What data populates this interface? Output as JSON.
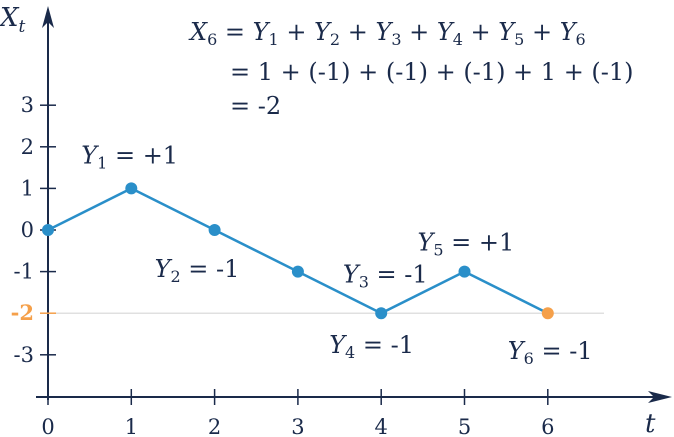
{
  "chart_data": {
    "type": "line",
    "x_axis_label": "t",
    "y_axis_label_base": "X",
    "y_axis_label_sub": "t",
    "x_ticks": [
      "0",
      "1",
      "2",
      "3",
      "4",
      "5",
      "6"
    ],
    "y_ticks": [
      {
        "value": 3,
        "label": "3"
      },
      {
        "value": 2,
        "label": "2"
      },
      {
        "value": 1,
        "label": "1"
      },
      {
        "value": 0,
        "label": "0"
      },
      {
        "value": -1,
        "label": "-1"
      },
      {
        "value": -2,
        "label": "-2",
        "highlight": true
      },
      {
        "value": -3,
        "label": "-3"
      }
    ],
    "xlim": [
      0,
      6
    ],
    "ylim": [
      -3,
      3
    ],
    "x": [
      0,
      1,
      2,
      3,
      4,
      5,
      6
    ],
    "y": [
      0,
      1,
      0,
      -1,
      -2,
      -1,
      -2
    ],
    "reference_line_y": -2,
    "step_labels": [
      {
        "base": "Y",
        "sub": "1",
        "text": " = +1",
        "at_x": 1,
        "at_y": 1
      },
      {
        "base": "Y",
        "sub": "2",
        "text": " = -1",
        "at_x": 2,
        "at_y": 0
      },
      {
        "base": "Y",
        "sub": "3",
        "text": " = -1",
        "at_x": 3,
        "at_y": -1
      },
      {
        "base": "Y",
        "sub": "4",
        "text": " = -1",
        "at_x": 4,
        "at_y": -2
      },
      {
        "base": "Y",
        "sub": "5",
        "text": " = +1",
        "at_x": 5,
        "at_y": -1
      },
      {
        "base": "Y",
        "sub": "6",
        "text": " = -1",
        "at_x": 6,
        "at_y": -2
      }
    ],
    "equation": {
      "line1_terms": [
        {
          "base": "X",
          "sub": "6",
          "after": " = "
        },
        {
          "base": "Y",
          "sub": "1",
          "after": " + "
        },
        {
          "base": "Y",
          "sub": "2",
          "after": " + "
        },
        {
          "base": "Y",
          "sub": "3",
          "after": " + "
        },
        {
          "base": "Y",
          "sub": "4",
          "after": " + "
        },
        {
          "base": "Y",
          "sub": "5",
          "after": " + "
        },
        {
          "base": "Y",
          "sub": "6",
          "after": ""
        }
      ],
      "line2": "= 1 + (-1) + (-1) + (-1) + 1 + (-1)",
      "line3": "= -2"
    },
    "colors": {
      "line": "#2a8fc9",
      "point": "#2a8fc9",
      "final_point": "#f5a04a",
      "axis": "#1a2a4a",
      "text": "#1a2a4a",
      "highlight_tick": "#f5a04a",
      "reference_line": "#e0e0e0"
    }
  }
}
